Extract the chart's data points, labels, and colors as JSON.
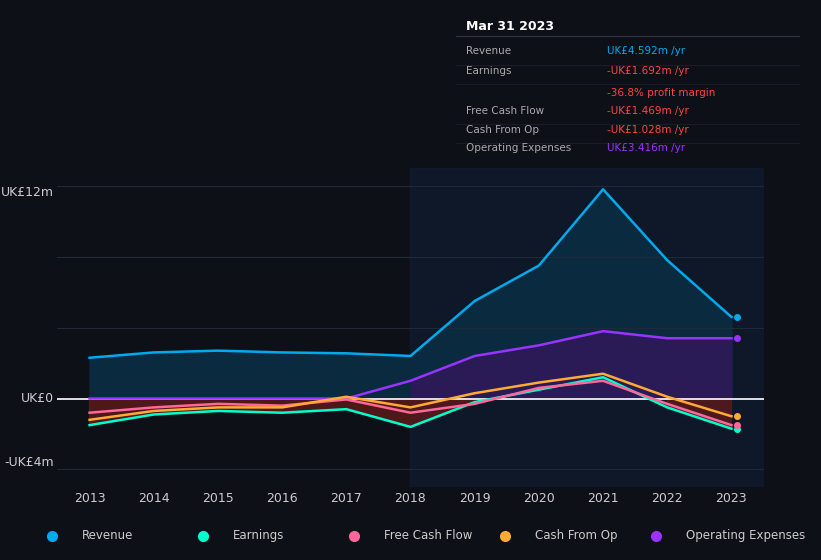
{
  "background_color": "#0d1117",
  "plot_bg_color": "#0d1117",
  "text_color": "#cccccc",
  "grid_color": "#1e2a38",
  "border_color": "#333344",
  "ylabel_top": "UK£12m",
  "ylabel_bottom": "-UK£4m",
  "ylabel_zero": "UK£0",
  "years": [
    2013,
    2014,
    2015,
    2016,
    2017,
    2018,
    2019,
    2020,
    2021,
    2022,
    2023
  ],
  "revenue": [
    2.3,
    2.6,
    2.7,
    2.6,
    2.55,
    2.4,
    5.5,
    7.5,
    11.8,
    7.8,
    4.6
  ],
  "earnings": [
    -1.5,
    -0.9,
    -0.7,
    -0.8,
    -0.6,
    -1.6,
    -0.2,
    0.5,
    1.2,
    -0.5,
    -1.7
  ],
  "free_cf": [
    -0.8,
    -0.5,
    -0.3,
    -0.4,
    -0.05,
    -0.8,
    -0.3,
    0.6,
    1.0,
    -0.3,
    -1.5
  ],
  "cash_from_op": [
    -1.2,
    -0.7,
    -0.5,
    -0.5,
    0.1,
    -0.5,
    0.3,
    0.9,
    1.4,
    0.1,
    -1.0
  ],
  "op_expenses": [
    0.0,
    0.0,
    0.0,
    0.0,
    0.0,
    1.0,
    2.4,
    3.0,
    3.8,
    3.4,
    3.4
  ],
  "revenue_color": "#00aaee",
  "revenue_fill": "#0a2a40",
  "earnings_color": "#00ffcc",
  "free_cf_color": "#ff6699",
  "cash_from_op_color": "#ffaa33",
  "op_expenses_color": "#9933ff",
  "op_expenses_fill": "#2a1a55",
  "negative_fill_color": "#5a1a1a",
  "zero_line_color": "#ffffff",
  "highlight_color": "#12203a",
  "info_box": {
    "title": "Mar 31 2023",
    "title_color": "#ffffff",
    "bg_color": "#050a10",
    "border_color": "#333344",
    "label_color": "#aaaaaa",
    "rows": [
      {
        "label": "Revenue",
        "value": "UK£4.592m /yr",
        "value_color": "#00aaee",
        "extra": null,
        "extra_color": null
      },
      {
        "label": "Earnings",
        "value": "-UK£1.692m /yr",
        "value_color": "#ff4444",
        "extra": "-36.8% profit margin",
        "extra_color": "#ff4444"
      },
      {
        "label": "Free Cash Flow",
        "value": "-UK£1.469m /yr",
        "value_color": "#ff4444",
        "extra": null,
        "extra_color": null
      },
      {
        "label": "Cash From Op",
        "value": "-UK£1.028m /yr",
        "value_color": "#ff4444",
        "extra": null,
        "extra_color": null
      },
      {
        "label": "Operating Expenses",
        "value": "UK£3.416m /yr",
        "value_color": "#9933ff",
        "extra": null,
        "extra_color": null
      }
    ]
  },
  "legend": [
    {
      "label": "Revenue",
      "color": "#00aaee"
    },
    {
      "label": "Earnings",
      "color": "#00ffcc"
    },
    {
      "label": "Free Cash Flow",
      "color": "#ff6699"
    },
    {
      "label": "Cash From Op",
      "color": "#ffaa33"
    },
    {
      "label": "Operating Expenses",
      "color": "#9933ff"
    }
  ],
  "ylim": [
    -5,
    13
  ],
  "xlim_left": 2012.5,
  "xlim_right": 2023.5,
  "highlight_x_start": 2018.0,
  "highlight_x_end": 2023.5
}
